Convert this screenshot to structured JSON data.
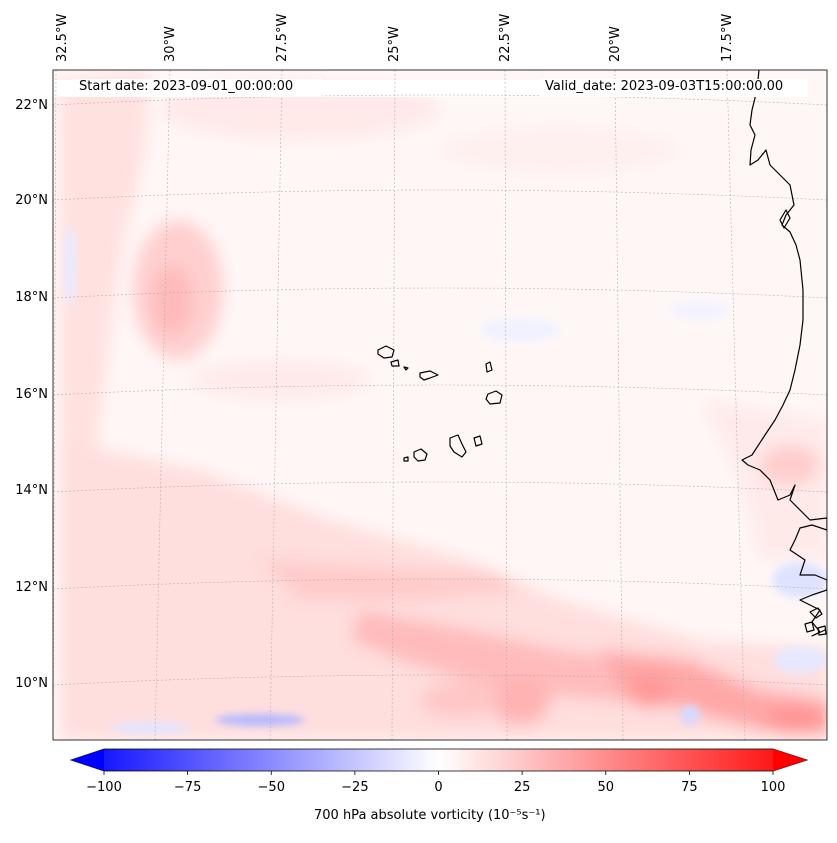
{
  "map": {
    "start_date_label": "Start date: 2023-09-01_00:00:00",
    "valid_date_label": "Valid_date: 2023-09-03T15:00:00.00",
    "longitude_labels": [
      "32.5°W",
      "30°W",
      "27.5°W",
      "25°W",
      "22.5°W",
      "20°W",
      "17.5°W"
    ],
    "latitude_labels": [
      "22°N",
      "20°N",
      "18°N",
      "16°N",
      "14°N",
      "12°N",
      "10°N"
    ],
    "region_depicted": "Cape Verde Islands and West African coast"
  },
  "colorbar": {
    "ticks": [
      "−100",
      "−75",
      "−50",
      "−25",
      "0",
      "25",
      "50",
      "75",
      "100"
    ],
    "min": -100,
    "max": 100,
    "label": "700 hPa absolute vorticity (10⁻⁵s⁻¹)",
    "low_color": "#0000ff",
    "mid_color": "#ffffff",
    "high_color": "#ff0000"
  }
}
